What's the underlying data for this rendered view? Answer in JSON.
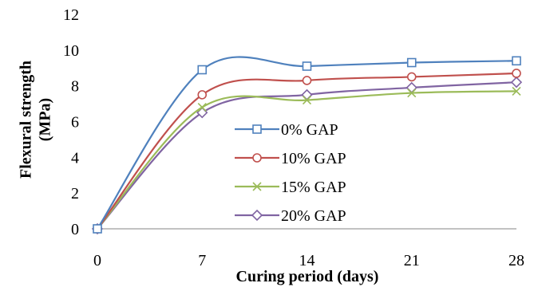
{
  "chart_data": {
    "type": "line",
    "title": "",
    "xlabel": "Curing period (days)",
    "ylabel_lines": [
      "Flexural strength",
      "(MPa)"
    ],
    "x": [
      0,
      7,
      14,
      21,
      28
    ],
    "xlim": [
      0,
      28
    ],
    "xticks": [
      0,
      7,
      14,
      21,
      28
    ],
    "ylim": [
      0,
      12
    ],
    "yticks": [
      0,
      2,
      4,
      6,
      8,
      10,
      12
    ],
    "grid": false,
    "smooth": true,
    "legend_position": "center",
    "series": [
      {
        "name": "0% GAP",
        "values": [
          0,
          8.9,
          9.1,
          9.3,
          9.4
        ],
        "color": "#4F81BD",
        "marker": "square"
      },
      {
        "name": "10% GAP",
        "values": [
          0,
          7.5,
          8.3,
          8.5,
          8.7
        ],
        "color": "#C0504D",
        "marker": "circle"
      },
      {
        "name": "15% GAP",
        "values": [
          0,
          6.8,
          7.2,
          7.6,
          7.7
        ],
        "color": "#9BBB59",
        "marker": "x"
      },
      {
        "name": "20% GAP",
        "values": [
          0,
          6.5,
          7.5,
          7.9,
          8.2
        ],
        "color": "#8064A2",
        "marker": "diamond"
      }
    ]
  }
}
